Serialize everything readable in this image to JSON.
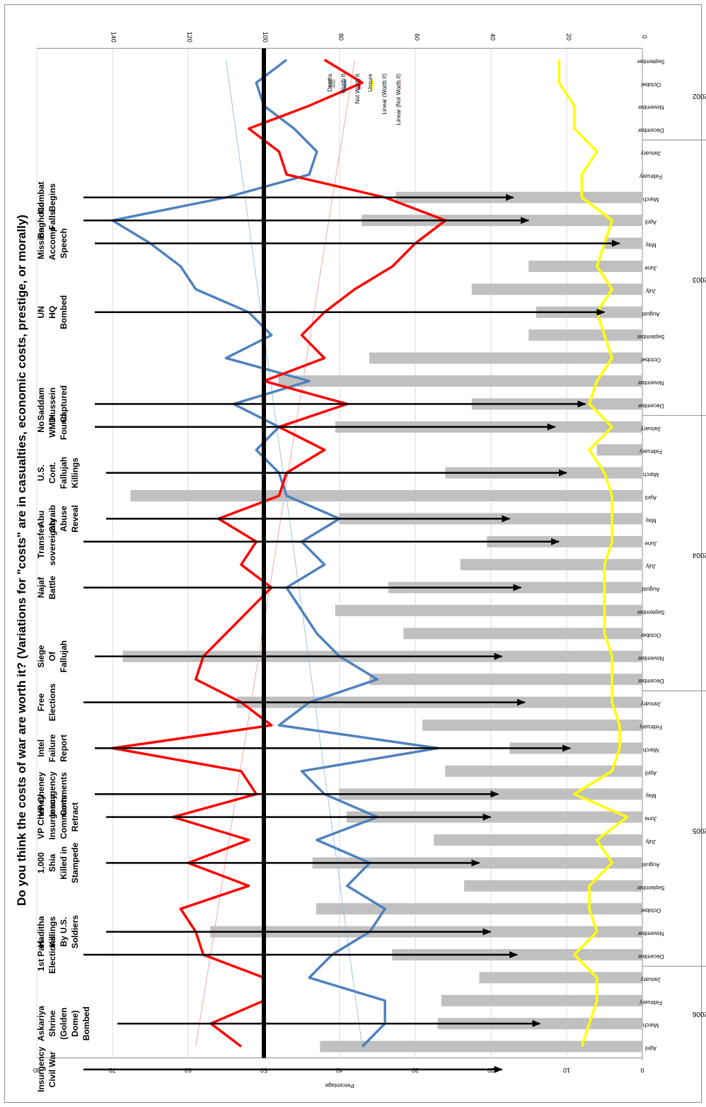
{
  "chart_data": {
    "type": "bar",
    "title": "Do you think the costs of war are worth it? (Variations for \"costs\" are in casualties, economic costs, prestige, or morally)",
    "y_left": {
      "label": "Percentage",
      "ticks": [
        "0",
        "10",
        "20",
        "30",
        "40",
        "50",
        "60",
        "70",
        "80"
      ],
      "range": [
        0,
        80
      ]
    },
    "y_right": {
      "ticks": [
        "0",
        "20",
        "40",
        "60",
        "80",
        "100",
        "120",
        "140"
      ],
      "range": [
        0,
        140
      ]
    },
    "reference_line": 50,
    "legend": {
      "position": "top-right",
      "entries": [
        "Deaths",
        "Worth It",
        "Not Worth It",
        "Unsure",
        "Linear (Worth It)",
        "Linear (Not Worth It)"
      ]
    },
    "colors": {
      "deaths": "#c0c0c0",
      "worth": "#4f81bd",
      "not_worth": "#ff0000",
      "unsure": "#ffff00",
      "trend_worth": "#9dc3e6",
      "trend_not": "#f4a6a6"
    },
    "years": [
      {
        "label": "2002",
        "start": 0,
        "count": 4
      },
      {
        "label": "2003",
        "start": 4,
        "count": 12
      },
      {
        "label": "2004",
        "start": 16,
        "count": 12
      },
      {
        "label": "2005",
        "start": 28,
        "count": 12
      },
      {
        "label": "2006",
        "start": 40,
        "count": 4
      }
    ],
    "months": [
      "September",
      "October",
      "November",
      "December",
      "January",
      "February",
      "March",
      "April",
      "May",
      "June",
      "July",
      "August",
      "September",
      "October",
      "November",
      "December",
      "January",
      "February",
      "March",
      "April",
      "May",
      "June",
      "July",
      "August",
      "September",
      "October",
      "November",
      "December",
      "January",
      "February",
      "March",
      "April",
      "May",
      "June",
      "July",
      "August",
      "September",
      "October",
      "November",
      "December",
      "January",
      "February",
      "March",
      "April"
    ],
    "series": [
      {
        "name": "Deaths",
        "axis": "right",
        "values": [
          null,
          null,
          null,
          null,
          null,
          null,
          65,
          74,
          10,
          30,
          45,
          28,
          30,
          72,
          96,
          45,
          81,
          12,
          52,
          135,
          80,
          41,
          48,
          67,
          81,
          63,
          137,
          72,
          107,
          58,
          35,
          52,
          80,
          78,
          55,
          87,
          47,
          86,
          114,
          66,
          43,
          53,
          54,
          85
        ]
      },
      {
        "name": "Worth It",
        "values": [
          47,
          51,
          50,
          46,
          43,
          44,
          55,
          70,
          65,
          61,
          59,
          52,
          49,
          55,
          44,
          54,
          48,
          51,
          48,
          47,
          40,
          45,
          42,
          47,
          45,
          43,
          40,
          35,
          44,
          48,
          27,
          45,
          42,
          35,
          43,
          36,
          39,
          34,
          36,
          41,
          44,
          34,
          34,
          37
        ]
      },
      {
        "name": "Not Worth It",
        "values": [
          42,
          37,
          44,
          52,
          48,
          47,
          34,
          26,
          30,
          33,
          38,
          42,
          45,
          42,
          50,
          39,
          48,
          42,
          47,
          48,
          56,
          51,
          53,
          49,
          52,
          55,
          58,
          59,
          53,
          49,
          70,
          53,
          51,
          62,
          52,
          60,
          52,
          61,
          59,
          58,
          50,
          50,
          57,
          53
        ]
      },
      {
        "name": "Unsure",
        "values": [
          11,
          11,
          9,
          9,
          6,
          8,
          8,
          4,
          5,
          6,
          4,
          6,
          5,
          4,
          6,
          7,
          4,
          7,
          5,
          4,
          4,
          4,
          5,
          5,
          5,
          5,
          4,
          4,
          4,
          3,
          3,
          4,
          9,
          2,
          6,
          4,
          7,
          7,
          6,
          9,
          6,
          6,
          7,
          8
        ]
      },
      {
        "name": "Linear (Worth It)",
        "values": [
          55,
          37
        ]
      },
      {
        "name": "Linear (Not Worth It)",
        "values": [
          38,
          59
        ]
      }
    ],
    "annotations": [
      {
        "text": "Combat\nBegins",
        "month": 6,
        "tip": 34
      },
      {
        "text": "Baghdad\nFalls",
        "month": 7,
        "tip": 30
      },
      {
        "text": "Mission\nAccomp\nSpeech",
        "month": 8,
        "tip": 6
      },
      {
        "text": "UN\nHQ\nBombed",
        "month": 11,
        "tip": 10
      },
      {
        "text": "Saddam\nHussein\nCaptured",
        "month": 15,
        "tip": 15
      },
      {
        "text": "No\nWMD\nFound",
        "month": 16,
        "tip": 23
      },
      {
        "text": "U.S.\nCont.\nFallujah\nKillings",
        "month": 18,
        "tip": 20
      },
      {
        "text": "Abu\nGhraib\nAbuse\nReveal",
        "month": 20,
        "tip": 35
      },
      {
        "text": "Transfer\nsovereignty",
        "month": 21,
        "tip": 22
      },
      {
        "text": "Najaf\nBattle",
        "month": 23,
        "tip": 32
      },
      {
        "text": "Siege\nOf\nFallujah",
        "month": 26,
        "tip": 37
      },
      {
        "text": "Free\nElections",
        "month": 28,
        "tip": 31
      },
      {
        "text": "Intel\nFailure\nReport",
        "month": 30,
        "tip": 19
      },
      {
        "text": "VP Cheney\nInsurgency\nComments",
        "month": 32,
        "tip": 38
      },
      {
        "text": "VP Cheney\nInsurgency\nComments\nRetract",
        "month": 33,
        "tip": 40
      },
      {
        "text": "1,000\nShia\nKilled in\nStampede",
        "month": 35,
        "tip": 43
      },
      {
        "text": "Haditha\nKillings\nBy U.S.\nSoldiers",
        "month": 38,
        "tip": 40
      },
      {
        "text": "1st Parl.\nElections",
        "month": 39,
        "tip": 33
      },
      {
        "text": "Askariya\nShrine\n(Golden\nDome)\nBombed",
        "month": 42,
        "tip": 27
      },
      {
        "text": "Insurgency\nCivil War",
        "month": 44,
        "tip": 37
      }
    ]
  }
}
